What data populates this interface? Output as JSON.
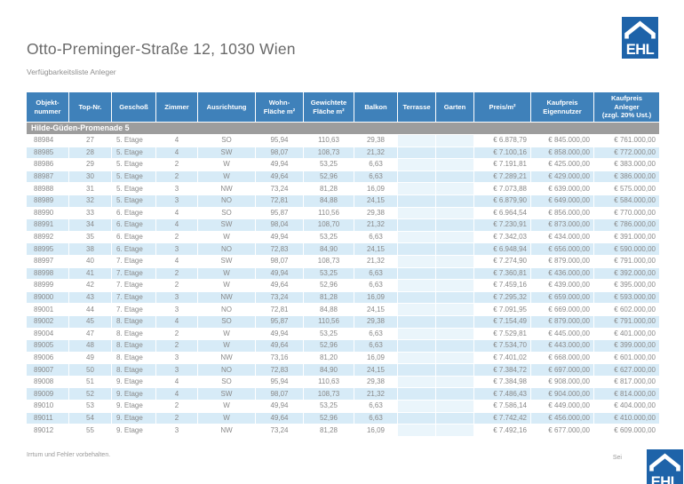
{
  "page": {
    "title": "Otto-Preminger-Straße 12, 1030 Wien",
    "subtitle": "Verfügbarkeitsliste Anleger",
    "footer_left": "Irrtum und Fehler vorbehalten.",
    "footer_right": "Sei",
    "logo_text": "EHL"
  },
  "colors": {
    "header_blue": "#3f81ba",
    "section_gray": "#9d9d9d",
    "row_alt_blue": "#d7ebf7",
    "empty_cell_tint": "#eaf5fb",
    "logo_blue": "#1e63a9",
    "text_gray": "#898989"
  },
  "table": {
    "section": "Hilde-Güden-Promenade 5",
    "columns": [
      {
        "id": "objektnummer",
        "lines": [
          "Objekt-",
          "nummer"
        ]
      },
      {
        "id": "top-nr",
        "lines": [
          "Top-Nr."
        ]
      },
      {
        "id": "geschoss",
        "lines": [
          "Geschoß"
        ]
      },
      {
        "id": "zimmer",
        "lines": [
          "Zimmer"
        ]
      },
      {
        "id": "ausrichtung",
        "lines": [
          "Ausrichtung"
        ]
      },
      {
        "id": "wohnflaeche",
        "lines": [
          "Wohn-",
          "Fläche m²"
        ]
      },
      {
        "id": "gewichtete-flaeche",
        "lines": [
          "Gewichtete",
          "Fläche m²"
        ]
      },
      {
        "id": "balkon",
        "lines": [
          "Balkon"
        ]
      },
      {
        "id": "terrasse",
        "lines": [
          "Terrasse"
        ]
      },
      {
        "id": "garten",
        "lines": [
          "Garten"
        ]
      },
      {
        "id": "preis-m2",
        "lines": [
          "Preis/m²"
        ]
      },
      {
        "id": "kaufpreis-eigennutzer",
        "lines": [
          "Kaufpreis",
          "Eigennutzer"
        ]
      },
      {
        "id": "kaufpreis-anleger",
        "lines": [
          "Kaufpreis",
          "Anleger",
          "(zzgl. 20% Ust.)"
        ]
      }
    ],
    "rows": [
      [
        "88984",
        "27",
        "5. Etage",
        "4",
        "SO",
        "95,94",
        "110,63",
        "29,38",
        "",
        "",
        "€ 6.878,79",
        "€ 845.000,00",
        "€ 761.000,00"
      ],
      [
        "88985",
        "28",
        "5. Etage",
        "4",
        "SW",
        "98,07",
        "108,73",
        "21,32",
        "",
        "",
        "€ 7.100,16",
        "€ 858.000,00",
        "€ 772.000,00"
      ],
      [
        "88986",
        "29",
        "5. Etage",
        "2",
        "W",
        "49,94",
        "53,25",
        "6,63",
        "",
        "",
        "€ 7.191,81",
        "€ 425.000,00",
        "€ 383.000,00"
      ],
      [
        "88987",
        "30",
        "5. Etage",
        "2",
        "W",
        "49,64",
        "52,96",
        "6,63",
        "",
        "",
        "€ 7.289,21",
        "€ 429.000,00",
        "€ 386.000,00"
      ],
      [
        "88988",
        "31",
        "5. Etage",
        "3",
        "NW",
        "73,24",
        "81,28",
        "16,09",
        "",
        "",
        "€ 7.073,88",
        "€ 639.000,00",
        "€ 575.000,00"
      ],
      [
        "88989",
        "32",
        "5. Etage",
        "3",
        "NO",
        "72,81",
        "84,88",
        "24,15",
        "",
        "",
        "€ 6.879,90",
        "€ 649.000,00",
        "€ 584.000,00"
      ],
      [
        "88990",
        "33",
        "6. Etage",
        "4",
        "SO",
        "95,87",
        "110,56",
        "29,38",
        "",
        "",
        "€ 6.964,54",
        "€ 856.000,00",
        "€ 770.000,00"
      ],
      [
        "88991",
        "34",
        "6. Etage",
        "4",
        "SW",
        "98,04",
        "108,70",
        "21,32",
        "",
        "",
        "€ 7.230,91",
        "€ 873.000,00",
        "€ 786.000,00"
      ],
      [
        "88992",
        "35",
        "6. Etage",
        "2",
        "W",
        "49,94",
        "53,25",
        "6,63",
        "",
        "",
        "€ 7.342,03",
        "€ 434.000,00",
        "€ 391.000,00"
      ],
      [
        "88995",
        "38",
        "6. Etage",
        "3",
        "NO",
        "72,83",
        "84,90",
        "24,15",
        "",
        "",
        "€ 6.948,94",
        "€ 656.000,00",
        "€ 590.000,00"
      ],
      [
        "88997",
        "40",
        "7. Etage",
        "4",
        "SW",
        "98,07",
        "108,73",
        "21,32",
        "",
        "",
        "€ 7.274,90",
        "€ 879.000,00",
        "€ 791.000,00"
      ],
      [
        "88998",
        "41",
        "7. Etage",
        "2",
        "W",
        "49,94",
        "53,25",
        "6,63",
        "",
        "",
        "€ 7.360,81",
        "€ 436.000,00",
        "€ 392.000,00"
      ],
      [
        "88999",
        "42",
        "7. Etage",
        "2",
        "W",
        "49,64",
        "52,96",
        "6,63",
        "",
        "",
        "€ 7.459,16",
        "€ 439.000,00",
        "€ 395.000,00"
      ],
      [
        "89000",
        "43",
        "7. Etage",
        "3",
        "NW",
        "73,24",
        "81,28",
        "16,09",
        "",
        "",
        "€ 7.295,32",
        "€ 659.000,00",
        "€ 593.000,00"
      ],
      [
        "89001",
        "44",
        "7. Etage",
        "3",
        "NO",
        "72,81",
        "84,88",
        "24,15",
        "",
        "",
        "€ 7.091,95",
        "€ 669.000,00",
        "€ 602.000,00"
      ],
      [
        "89002",
        "45",
        "8. Etage",
        "4",
        "SO",
        "95,87",
        "110,56",
        "29,38",
        "",
        "",
        "€ 7.154,49",
        "€ 879.000,00",
        "€ 791.000,00"
      ],
      [
        "89004",
        "47",
        "8. Etage",
        "2",
        "W",
        "49,94",
        "53,25",
        "6,63",
        "",
        "",
        "€ 7.529,81",
        "€ 445.000,00",
        "€ 401.000,00"
      ],
      [
        "89005",
        "48",
        "8. Etage",
        "2",
        "W",
        "49,64",
        "52,96",
        "6,63",
        "",
        "",
        "€ 7.534,70",
        "€ 443.000,00",
        "€ 399.000,00"
      ],
      [
        "89006",
        "49",
        "8. Etage",
        "3",
        "NW",
        "73,16",
        "81,20",
        "16,09",
        "",
        "",
        "€ 7.401,02",
        "€ 668.000,00",
        "€ 601.000,00"
      ],
      [
        "89007",
        "50",
        "8. Etage",
        "3",
        "NO",
        "72,83",
        "84,90",
        "24,15",
        "",
        "",
        "€ 7.384,72",
        "€ 697.000,00",
        "€ 627.000,00"
      ],
      [
        "89008",
        "51",
        "9. Etage",
        "4",
        "SO",
        "95,94",
        "110,63",
        "29,38",
        "",
        "",
        "€ 7.384,98",
        "€ 908.000,00",
        "€ 817.000,00"
      ],
      [
        "89009",
        "52",
        "9. Etage",
        "4",
        "SW",
        "98,07",
        "108,73",
        "21,32",
        "",
        "",
        "€ 7.486,43",
        "€ 904.000,00",
        "€ 814.000,00"
      ],
      [
        "89010",
        "53",
        "9. Etage",
        "2",
        "W",
        "49,94",
        "53,25",
        "6,63",
        "",
        "",
        "€ 7.586,14",
        "€ 449.000,00",
        "€ 404.000,00"
      ],
      [
        "89011",
        "54",
        "9. Etage",
        "2",
        "W",
        "49,64",
        "52,96",
        "6,63",
        "",
        "",
        "€ 7.742,42",
        "€ 456.000,00",
        "€ 410.000,00"
      ],
      [
        "89012",
        "55",
        "9. Etage",
        "3",
        "NW",
        "73,24",
        "81,28",
        "16,09",
        "",
        "",
        "€ 7.492,16",
        "€ 677.000,00",
        "€ 609.000,00"
      ]
    ]
  }
}
